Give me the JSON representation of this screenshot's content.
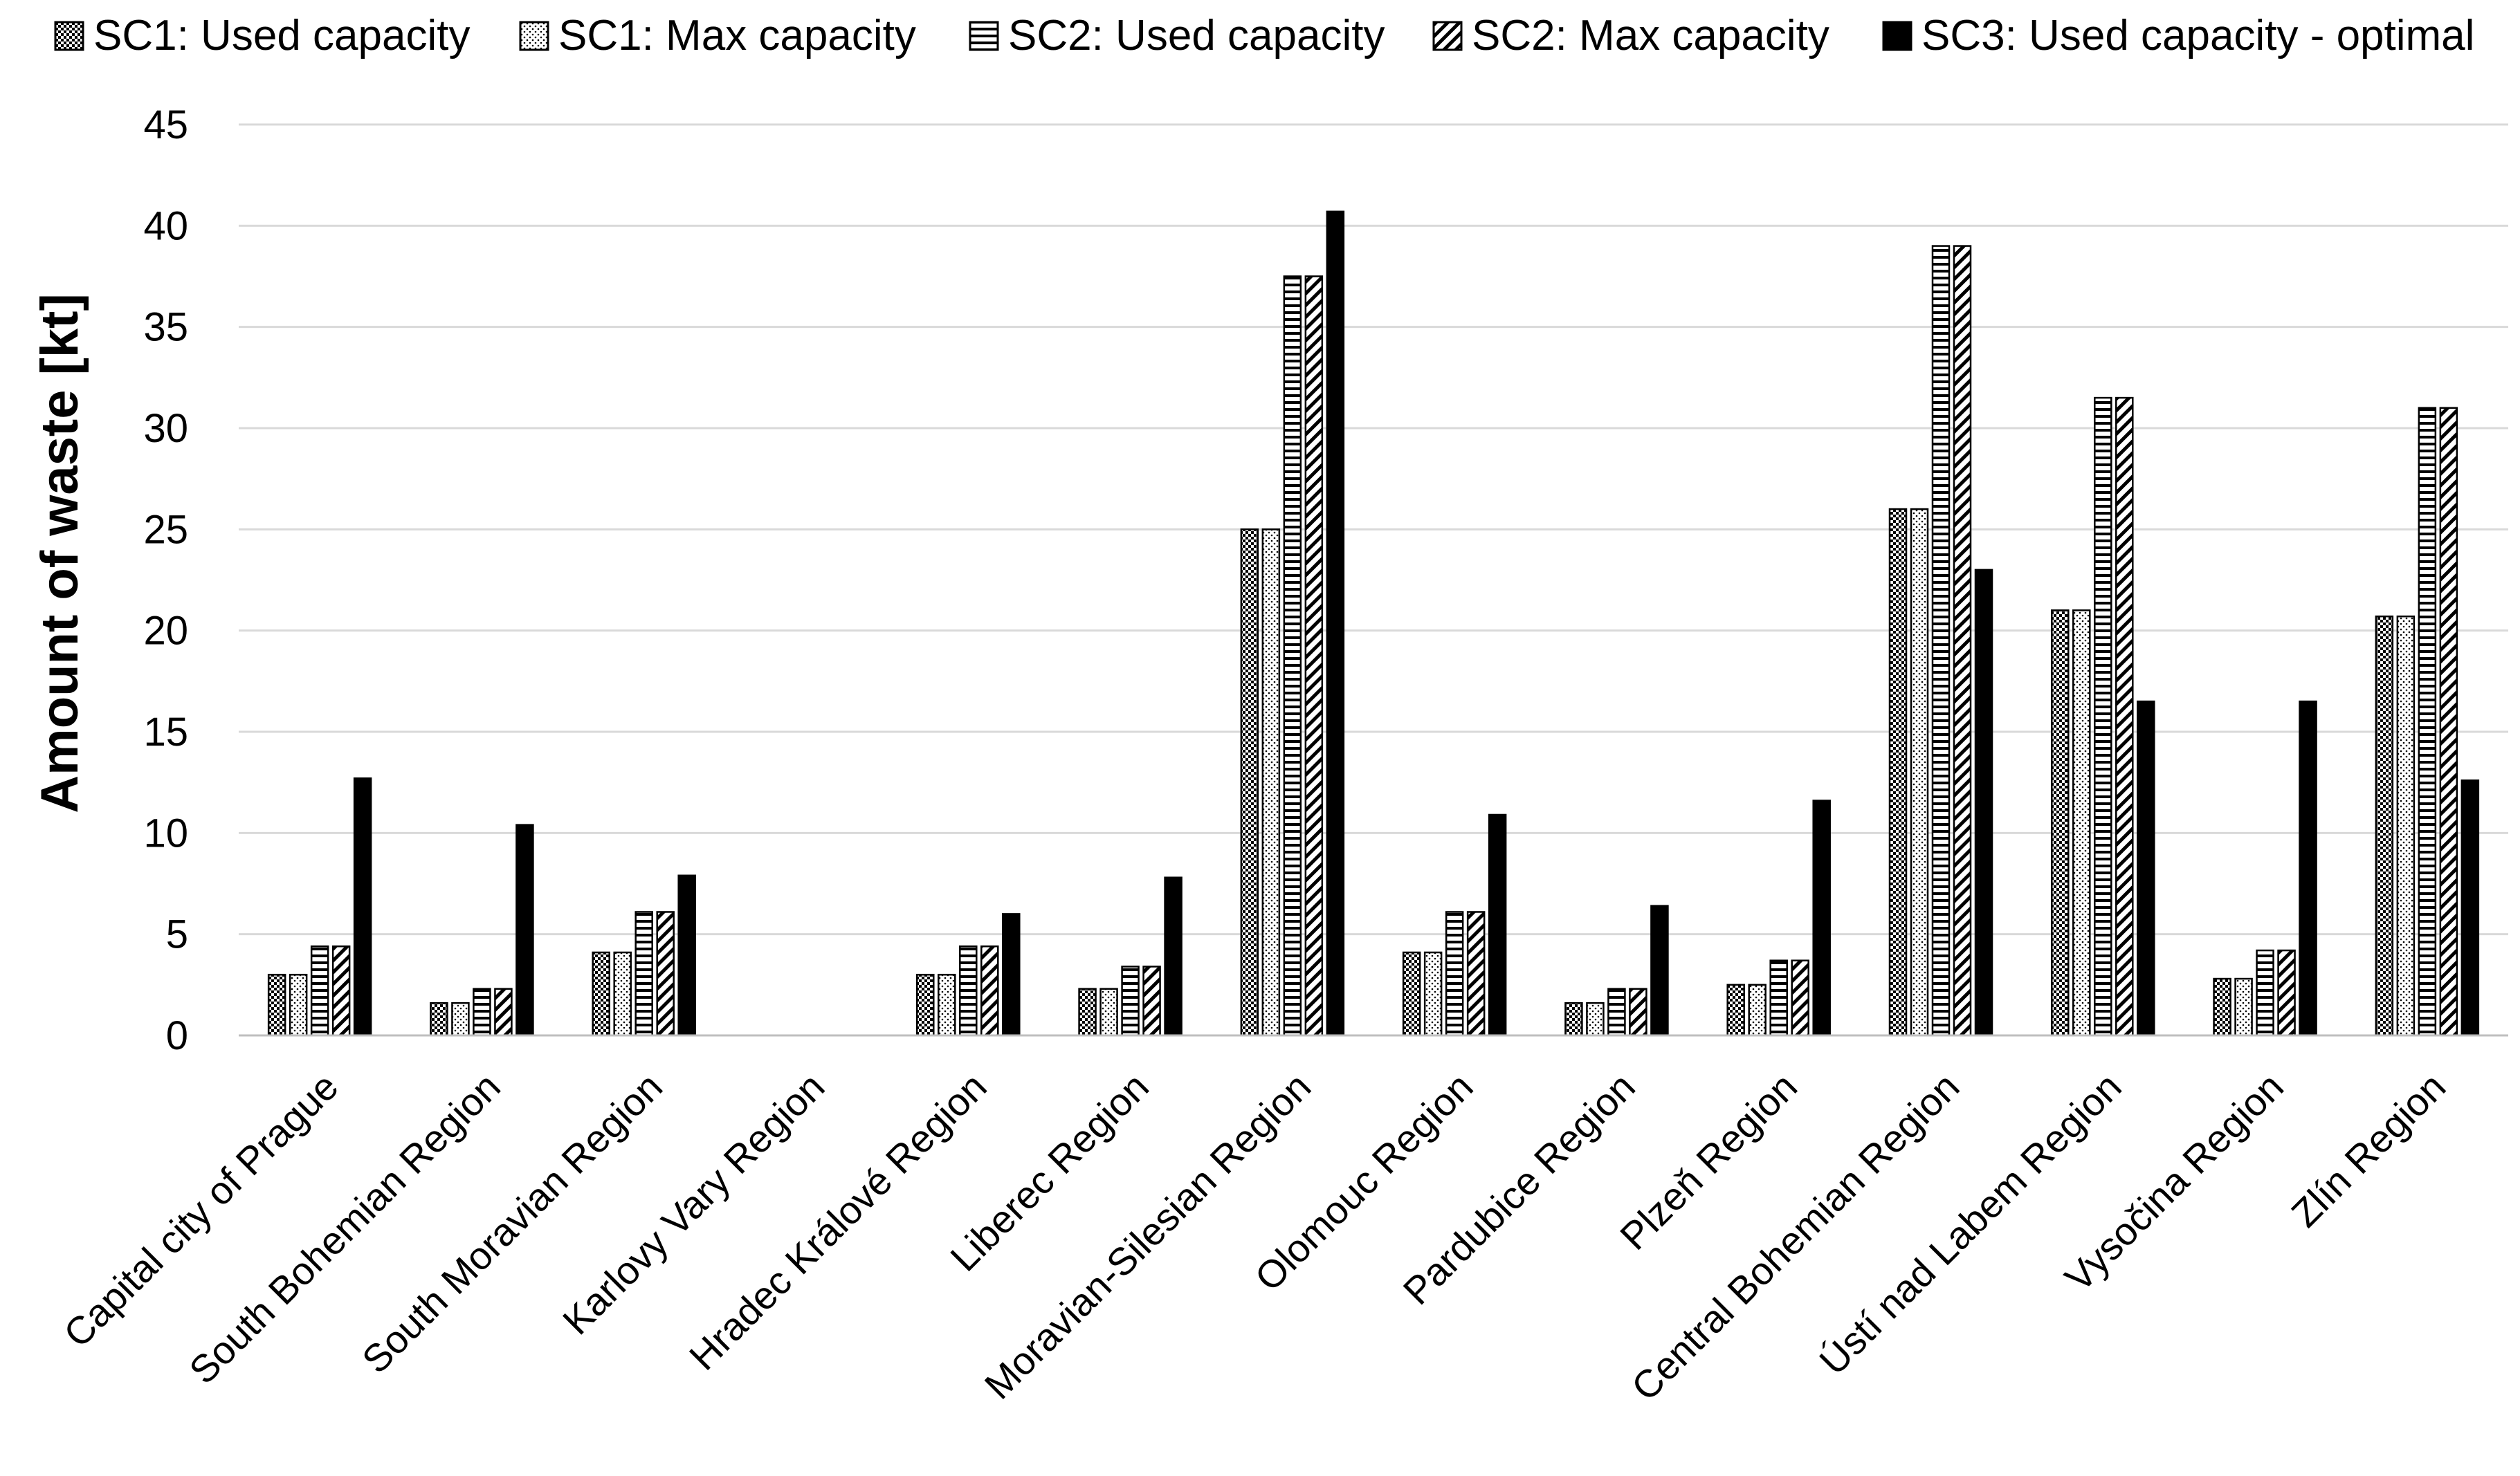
{
  "chart_data": {
    "type": "bar",
    "title": "",
    "xlabel": "",
    "ylabel": "Amount of waste [kt]",
    "ylim": [
      0,
      45
    ],
    "yticks": [
      0,
      5,
      10,
      15,
      20,
      25,
      30,
      35,
      40,
      45
    ],
    "grid": "horizontal",
    "legend_position": "top",
    "categories": [
      "Capital city of Prague",
      "South Bohemian Region",
      "South Moravian Region",
      "Karlovy Vary Region",
      "Hradec Králové Region",
      "Liberec Region",
      "Moravian-Silesian Region",
      "Olomouc Region",
      "Pardubice Region",
      "Plzeň Region",
      "Central Bohemian Region",
      "Ústí nad Labem Region",
      "Vysočina Region",
      "Zlín Region"
    ],
    "series": [
      {
        "name": "SC1: Used capacity",
        "pattern": "checker",
        "values": [
          3.0,
          1.6,
          4.1,
          0,
          3.0,
          2.3,
          25.0,
          4.1,
          1.6,
          2.5,
          26.0,
          21.0,
          2.8,
          20.7
        ]
      },
      {
        "name": "SC1: Max capacity",
        "pattern": "dots",
        "values": [
          3.0,
          1.6,
          4.1,
          0,
          3.0,
          2.3,
          25.0,
          4.1,
          1.6,
          2.5,
          26.0,
          21.0,
          2.8,
          20.7
        ]
      },
      {
        "name": "SC2: Used capacity",
        "pattern": "hstripes",
        "values": [
          4.4,
          2.3,
          6.1,
          0,
          4.4,
          3.4,
          37.5,
          6.1,
          2.3,
          3.7,
          39.0,
          31.5,
          4.2,
          31.0
        ]
      },
      {
        "name": "SC2: Max capacity",
        "pattern": "diagonal",
        "values": [
          4.4,
          2.3,
          6.1,
          0,
          4.4,
          3.4,
          37.5,
          6.1,
          2.3,
          3.7,
          39.0,
          31.5,
          4.2,
          31.0
        ]
      },
      {
        "name": "SC3: Used capacity - optimal",
        "pattern": "solid",
        "values": [
          12.7,
          10.4,
          7.9,
          0,
          6.0,
          7.8,
          40.7,
          10.9,
          6.4,
          11.6,
          23.0,
          16.5,
          16.5,
          12.6
        ]
      }
    ],
    "colors": {
      "bar": "#000000",
      "grid": "#d9d9d9",
      "background": "#ffffff"
    }
  }
}
